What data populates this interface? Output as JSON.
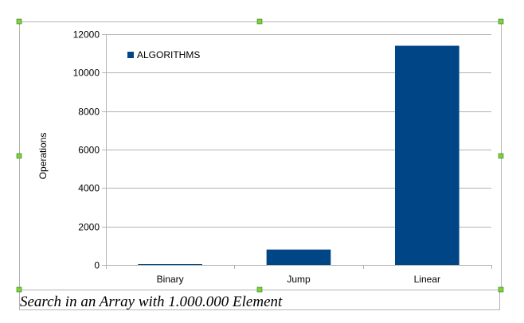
{
  "caption": "Search in an Array with 1.000.000 Element",
  "chart_data": {
    "type": "bar",
    "categories": [
      "Binary",
      "Jump",
      "Linear"
    ],
    "series": [
      {
        "name": "ALGORITHMS",
        "values": [
          20,
          800,
          11400
        ],
        "color": "#004586"
      }
    ],
    "xlabel": "",
    "ylabel": "Operations",
    "ylim": [
      0,
      12000
    ],
    "yticks": [
      "0",
      "2000",
      "4000",
      "6000",
      "8000",
      "10000",
      "12000"
    ],
    "grid": true,
    "legend_position": "top-left"
  },
  "colors": {
    "bar": "#004586",
    "grid": "#b3b3b3",
    "frame": "#b3b3b3",
    "handle": "#7ad33a"
  }
}
